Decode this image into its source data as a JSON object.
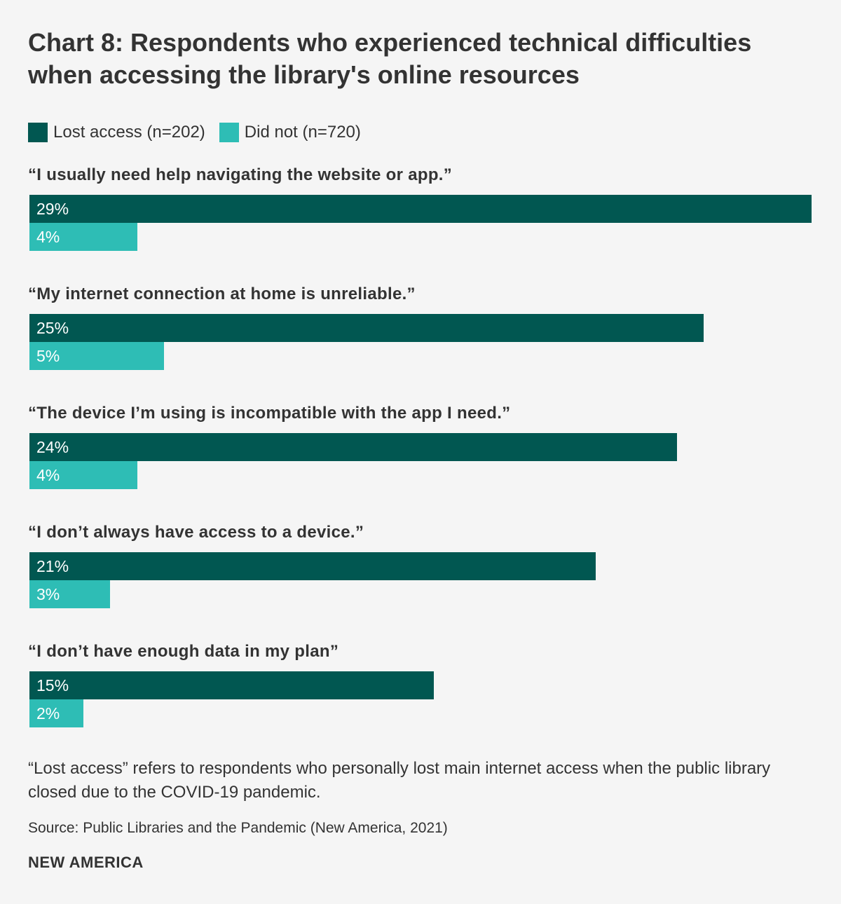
{
  "title": "Chart 8: Respondents who experienced technical difficulties when accessing the library's online resources",
  "colors": {
    "lost_access": "#015751",
    "did_not": "#2ebdb5",
    "background": "#f5f5f5",
    "text": "#333333"
  },
  "legend": {
    "items": [
      {
        "label": "Lost access (n=202)",
        "color": "#015751"
      },
      {
        "label": "Did not (n=720)",
        "color": "#2ebdb5"
      }
    ]
  },
  "chart_data": {
    "type": "bar",
    "orientation": "horizontal",
    "title": "Chart 8: Respondents who experienced technical difficulties when accessing the library's online resources",
    "categories": [
      "“I usually need help navigating the website or app.”",
      "“My internet connection at home is unreliable.”",
      "“The device I’m using is incompatible with the app I need.”",
      "“I don’t always have access to a device.”",
      "“I don’t have enough data in my plan”"
    ],
    "series": [
      {
        "name": "Lost access (n=202)",
        "values": [
          29,
          25,
          24,
          21,
          15
        ],
        "labels": [
          "29%",
          "25%",
          "24%",
          "21%",
          "15%"
        ],
        "color": "#015751"
      },
      {
        "name": "Did not (n=720)",
        "values": [
          4,
          5,
          4,
          3,
          2
        ],
        "labels": [
          "4%",
          "5%",
          "4%",
          "3%",
          "2%"
        ],
        "color": "#2ebdb5"
      }
    ],
    "xlim": [
      0,
      29
    ],
    "grid": false,
    "legend_position": "top-left"
  },
  "note": "“Lost access” refers to respondents who personally lost main internet access when the public library closed due to the COVID-19 pandemic.",
  "source": "Source: Public Libraries and the Pandemic (New America, 2021)",
  "brand": "NEW AMERICA"
}
